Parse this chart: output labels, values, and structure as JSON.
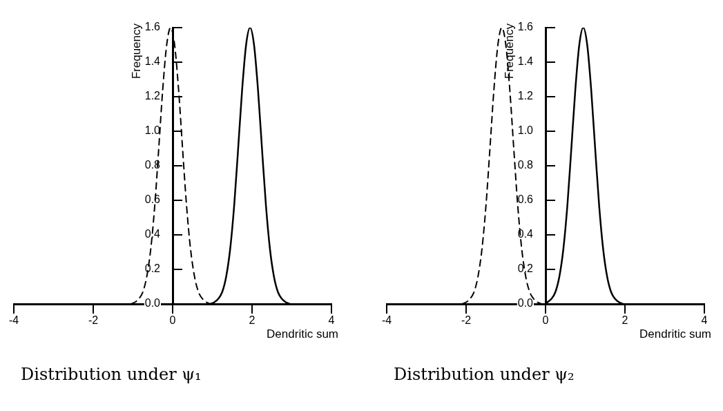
{
  "chart_data": [
    {
      "type": "line",
      "title": "Distribution under ψ₁",
      "xlabel": "Dendritic sum",
      "ylabel": "Frequency",
      "xlim": [
        -4,
        4
      ],
      "ylim": [
        0,
        1.6
      ],
      "xticks": [
        -4,
        -2,
        0,
        2,
        4
      ],
      "yticks": [
        {
          "value": 0,
          "label": "0.0"
        },
        {
          "value": 0.2,
          "label": "0.2"
        },
        {
          "value": 0.4,
          "label": "0.4"
        },
        {
          "value": 0.6,
          "label": "0.6"
        },
        {
          "value": 0.8,
          "label": "0.8"
        },
        {
          "value": 1.0,
          "label": "1.0"
        },
        {
          "value": 1.2,
          "label": "1.2"
        },
        {
          "value": 1.4,
          "label": "1.4"
        },
        {
          "value": 1.6,
          "label": "1.6"
        }
      ],
      "grid": false,
      "legend": false,
      "marker": "none",
      "series": [
        {
          "color": "#000000",
          "line_style": "dashed",
          "x": [
            -1.05,
            -0.95,
            -0.85,
            -0.75,
            -0.65,
            -0.55,
            -0.45,
            -0.35,
            -0.25,
            -0.15,
            -0.05,
            0.05,
            0.15,
            0.25,
            0.35,
            0.45,
            0.55,
            0.65,
            0.75,
            0.85,
            0.95
          ],
          "values": [
            0,
            0.01,
            0.03,
            0.07,
            0.16,
            0.32,
            0.57,
            0.9,
            1.24,
            1.5,
            1.6,
            1.5,
            1.24,
            0.9,
            0.57,
            0.32,
            0.16,
            0.07,
            0.03,
            0.01,
            0
          ]
        },
        {
          "color": "#000000",
          "line_style": "solid",
          "x": [
            0.95,
            1.05,
            1.15,
            1.25,
            1.35,
            1.45,
            1.55,
            1.65,
            1.75,
            1.85,
            1.95,
            2.05,
            2.15,
            2.25,
            2.35,
            2.45,
            2.55,
            2.65,
            2.75,
            2.85,
            2.95
          ],
          "values": [
            0,
            0.01,
            0.03,
            0.07,
            0.16,
            0.32,
            0.57,
            0.9,
            1.24,
            1.5,
            1.6,
            1.5,
            1.24,
            0.9,
            0.57,
            0.32,
            0.16,
            0.07,
            0.03,
            0.01,
            0
          ]
        }
      ]
    },
    {
      "type": "line",
      "title": "Distribution under ψ₂",
      "xlabel": "Dendritic sum",
      "ylabel": "Frequency",
      "xlim": [
        -4,
        4
      ],
      "ylim": [
        0,
        1.6
      ],
      "xticks": [
        -4,
        -2,
        0,
        2,
        4
      ],
      "yticks": [
        {
          "value": 0,
          "label": "0.0"
        },
        {
          "value": 0.2,
          "label": "0.2"
        },
        {
          "value": 0.4,
          "label": "0.4"
        },
        {
          "value": 0.6,
          "label": "0.6"
        },
        {
          "value": 0.8,
          "label": "0.8"
        },
        {
          "value": 1.0,
          "label": "1.0"
        },
        {
          "value": 1.2,
          "label": "1.2"
        },
        {
          "value": 1.4,
          "label": "1.4"
        },
        {
          "value": 1.6,
          "label": "1.6"
        }
      ],
      "grid": false,
      "legend": false,
      "marker": "none",
      "series": [
        {
          "color": "#000000",
          "line_style": "dashed",
          "x": [
            -2.1,
            -2.0,
            -1.9,
            -1.8,
            -1.7,
            -1.6,
            -1.5,
            -1.4,
            -1.3,
            -1.2,
            -1.1,
            -1.0,
            -0.9,
            -0.8,
            -0.7,
            -0.6,
            -0.5,
            -0.4,
            -0.3,
            -0.2,
            -0.1
          ],
          "values": [
            0,
            0.01,
            0.03,
            0.07,
            0.16,
            0.32,
            0.57,
            0.9,
            1.24,
            1.5,
            1.6,
            1.5,
            1.24,
            0.9,
            0.57,
            0.32,
            0.16,
            0.07,
            0.03,
            0.01,
            0
          ]
        },
        {
          "color": "#000000",
          "line_style": "solid",
          "x": [
            0,
            0.05,
            0.15,
            0.25,
            0.35,
            0.45,
            0.55,
            0.65,
            0.75,
            0.85,
            0.95,
            1.05,
            1.15,
            1.25,
            1.35,
            1.45,
            1.55,
            1.65,
            1.75,
            1.85,
            1.95
          ],
          "values": [
            0,
            0.01,
            0.03,
            0.07,
            0.16,
            0.32,
            0.57,
            0.9,
            1.24,
            1.5,
            1.6,
            1.5,
            1.24,
            0.9,
            0.57,
            0.32,
            0.16,
            0.07,
            0.03,
            0.01,
            0
          ]
        }
      ]
    }
  ]
}
